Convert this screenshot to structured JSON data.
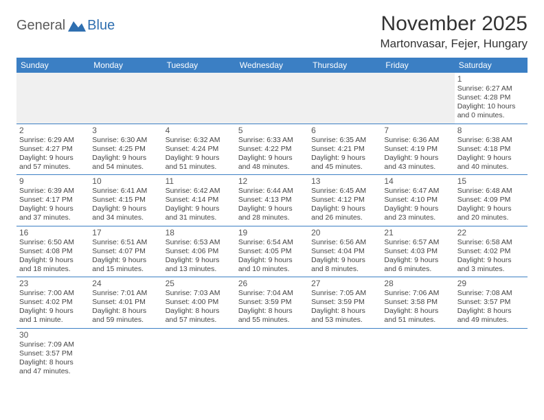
{
  "logo": {
    "text1": "General",
    "text2": "Blue"
  },
  "heading": {
    "month": "November 2025",
    "location": "Martonvasar, Fejer, Hungary"
  },
  "colors": {
    "header_bg": "#3b7fc4",
    "header_fg": "#ffffff",
    "rule": "#3b7fc4",
    "logo_gray": "#5a5a5a",
    "logo_blue": "#2f6fb0"
  },
  "day_names": [
    "Sunday",
    "Monday",
    "Tuesday",
    "Wednesday",
    "Thursday",
    "Friday",
    "Saturday"
  ],
  "weeks": [
    [
      null,
      null,
      null,
      null,
      null,
      null,
      {
        "n": "1",
        "sr": "Sunrise: 6:27 AM",
        "ss": "Sunset: 4:28 PM",
        "dl1": "Daylight: 10 hours",
        "dl2": "and 0 minutes."
      }
    ],
    [
      {
        "n": "2",
        "sr": "Sunrise: 6:29 AM",
        "ss": "Sunset: 4:27 PM",
        "dl1": "Daylight: 9 hours",
        "dl2": "and 57 minutes."
      },
      {
        "n": "3",
        "sr": "Sunrise: 6:30 AM",
        "ss": "Sunset: 4:25 PM",
        "dl1": "Daylight: 9 hours",
        "dl2": "and 54 minutes."
      },
      {
        "n": "4",
        "sr": "Sunrise: 6:32 AM",
        "ss": "Sunset: 4:24 PM",
        "dl1": "Daylight: 9 hours",
        "dl2": "and 51 minutes."
      },
      {
        "n": "5",
        "sr": "Sunrise: 6:33 AM",
        "ss": "Sunset: 4:22 PM",
        "dl1": "Daylight: 9 hours",
        "dl2": "and 48 minutes."
      },
      {
        "n": "6",
        "sr": "Sunrise: 6:35 AM",
        "ss": "Sunset: 4:21 PM",
        "dl1": "Daylight: 9 hours",
        "dl2": "and 45 minutes."
      },
      {
        "n": "7",
        "sr": "Sunrise: 6:36 AM",
        "ss": "Sunset: 4:19 PM",
        "dl1": "Daylight: 9 hours",
        "dl2": "and 43 minutes."
      },
      {
        "n": "8",
        "sr": "Sunrise: 6:38 AM",
        "ss": "Sunset: 4:18 PM",
        "dl1": "Daylight: 9 hours",
        "dl2": "and 40 minutes."
      }
    ],
    [
      {
        "n": "9",
        "sr": "Sunrise: 6:39 AM",
        "ss": "Sunset: 4:17 PM",
        "dl1": "Daylight: 9 hours",
        "dl2": "and 37 minutes."
      },
      {
        "n": "10",
        "sr": "Sunrise: 6:41 AM",
        "ss": "Sunset: 4:15 PM",
        "dl1": "Daylight: 9 hours",
        "dl2": "and 34 minutes."
      },
      {
        "n": "11",
        "sr": "Sunrise: 6:42 AM",
        "ss": "Sunset: 4:14 PM",
        "dl1": "Daylight: 9 hours",
        "dl2": "and 31 minutes."
      },
      {
        "n": "12",
        "sr": "Sunrise: 6:44 AM",
        "ss": "Sunset: 4:13 PM",
        "dl1": "Daylight: 9 hours",
        "dl2": "and 28 minutes."
      },
      {
        "n": "13",
        "sr": "Sunrise: 6:45 AM",
        "ss": "Sunset: 4:12 PM",
        "dl1": "Daylight: 9 hours",
        "dl2": "and 26 minutes."
      },
      {
        "n": "14",
        "sr": "Sunrise: 6:47 AM",
        "ss": "Sunset: 4:10 PM",
        "dl1": "Daylight: 9 hours",
        "dl2": "and 23 minutes."
      },
      {
        "n": "15",
        "sr": "Sunrise: 6:48 AM",
        "ss": "Sunset: 4:09 PM",
        "dl1": "Daylight: 9 hours",
        "dl2": "and 20 minutes."
      }
    ],
    [
      {
        "n": "16",
        "sr": "Sunrise: 6:50 AM",
        "ss": "Sunset: 4:08 PM",
        "dl1": "Daylight: 9 hours",
        "dl2": "and 18 minutes."
      },
      {
        "n": "17",
        "sr": "Sunrise: 6:51 AM",
        "ss": "Sunset: 4:07 PM",
        "dl1": "Daylight: 9 hours",
        "dl2": "and 15 minutes."
      },
      {
        "n": "18",
        "sr": "Sunrise: 6:53 AM",
        "ss": "Sunset: 4:06 PM",
        "dl1": "Daylight: 9 hours",
        "dl2": "and 13 minutes."
      },
      {
        "n": "19",
        "sr": "Sunrise: 6:54 AM",
        "ss": "Sunset: 4:05 PM",
        "dl1": "Daylight: 9 hours",
        "dl2": "and 10 minutes."
      },
      {
        "n": "20",
        "sr": "Sunrise: 6:56 AM",
        "ss": "Sunset: 4:04 PM",
        "dl1": "Daylight: 9 hours",
        "dl2": "and 8 minutes."
      },
      {
        "n": "21",
        "sr": "Sunrise: 6:57 AM",
        "ss": "Sunset: 4:03 PM",
        "dl1": "Daylight: 9 hours",
        "dl2": "and 6 minutes."
      },
      {
        "n": "22",
        "sr": "Sunrise: 6:58 AM",
        "ss": "Sunset: 4:02 PM",
        "dl1": "Daylight: 9 hours",
        "dl2": "and 3 minutes."
      }
    ],
    [
      {
        "n": "23",
        "sr": "Sunrise: 7:00 AM",
        "ss": "Sunset: 4:02 PM",
        "dl1": "Daylight: 9 hours",
        "dl2": "and 1 minute."
      },
      {
        "n": "24",
        "sr": "Sunrise: 7:01 AM",
        "ss": "Sunset: 4:01 PM",
        "dl1": "Daylight: 8 hours",
        "dl2": "and 59 minutes."
      },
      {
        "n": "25",
        "sr": "Sunrise: 7:03 AM",
        "ss": "Sunset: 4:00 PM",
        "dl1": "Daylight: 8 hours",
        "dl2": "and 57 minutes."
      },
      {
        "n": "26",
        "sr": "Sunrise: 7:04 AM",
        "ss": "Sunset: 3:59 PM",
        "dl1": "Daylight: 8 hours",
        "dl2": "and 55 minutes."
      },
      {
        "n": "27",
        "sr": "Sunrise: 7:05 AM",
        "ss": "Sunset: 3:59 PM",
        "dl1": "Daylight: 8 hours",
        "dl2": "and 53 minutes."
      },
      {
        "n": "28",
        "sr": "Sunrise: 7:06 AM",
        "ss": "Sunset: 3:58 PM",
        "dl1": "Daylight: 8 hours",
        "dl2": "and 51 minutes."
      },
      {
        "n": "29",
        "sr": "Sunrise: 7:08 AM",
        "ss": "Sunset: 3:57 PM",
        "dl1": "Daylight: 8 hours",
        "dl2": "and 49 minutes."
      }
    ],
    [
      {
        "n": "30",
        "sr": "Sunrise: 7:09 AM",
        "ss": "Sunset: 3:57 PM",
        "dl1": "Daylight: 8 hours",
        "dl2": "and 47 minutes."
      },
      null,
      null,
      null,
      null,
      null,
      null
    ]
  ]
}
